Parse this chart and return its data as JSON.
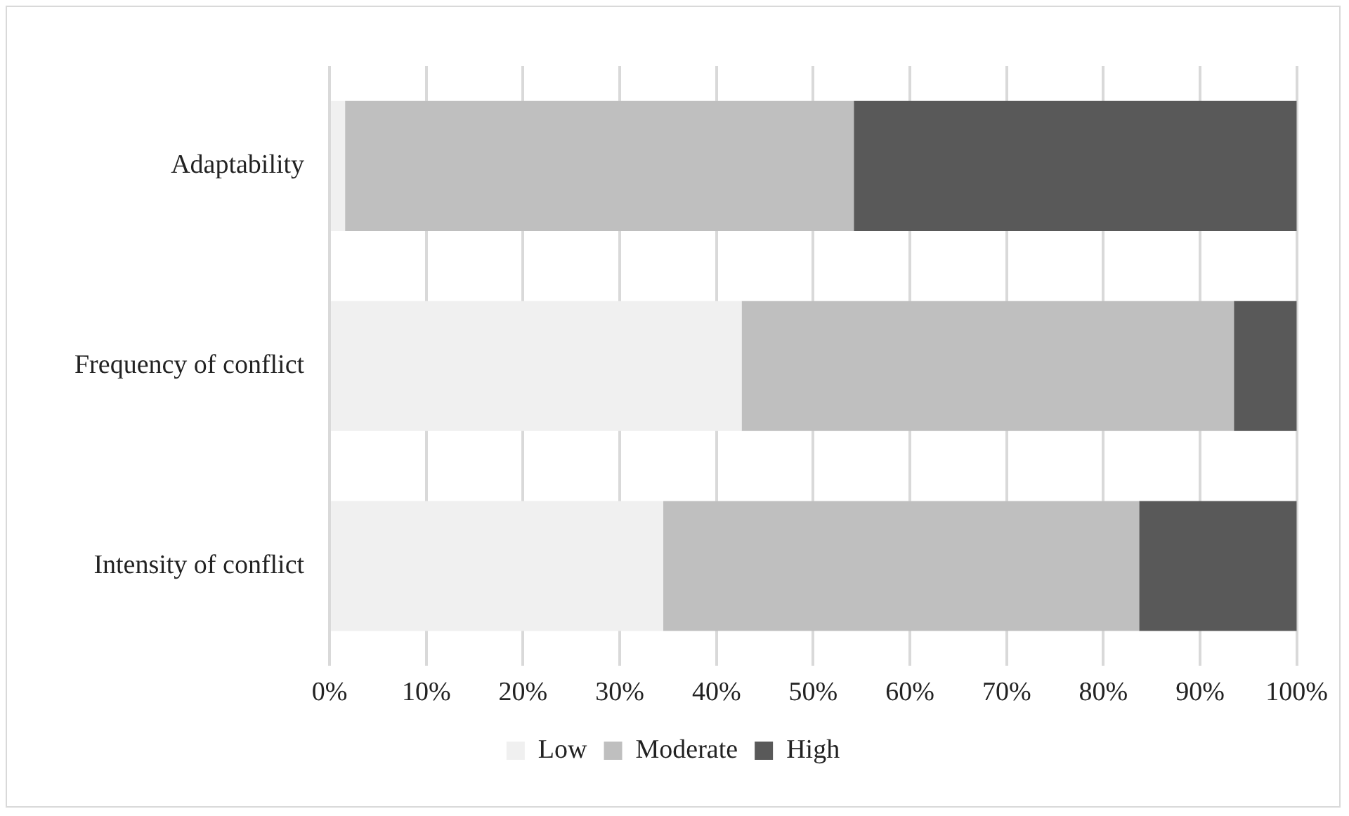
{
  "chart_data": {
    "type": "bar",
    "orientation": "horizontal",
    "stacked": true,
    "categories": [
      "Adaptability",
      "Frequency of conflict",
      "Intensity of conflict"
    ],
    "series": [
      {
        "name": "Low",
        "color": "#f0f0f0",
        "values": [
          1.6,
          42.6,
          34.5
        ]
      },
      {
        "name": "Moderate",
        "color": "#bfbfbf",
        "values": [
          52.6,
          50.9,
          49.2
        ]
      },
      {
        "name": "High",
        "color": "#595959",
        "values": [
          45.8,
          6.5,
          16.3
        ]
      }
    ],
    "xlim": [
      0,
      100
    ],
    "xticks": [
      {
        "value": 0,
        "label": "0%"
      },
      {
        "value": 10,
        "label": "10%"
      },
      {
        "value": 20,
        "label": "20%"
      },
      {
        "value": 30,
        "label": "30%"
      },
      {
        "value": 40,
        "label": "40%"
      },
      {
        "value": 50,
        "label": "50%"
      },
      {
        "value": 60,
        "label": "60%"
      },
      {
        "value": 70,
        "label": "70%"
      },
      {
        "value": 80,
        "label": "80%"
      },
      {
        "value": 90,
        "label": "90%"
      },
      {
        "value": 100,
        "label": "100%"
      }
    ],
    "grid": "x",
    "legend": "bottom"
  }
}
